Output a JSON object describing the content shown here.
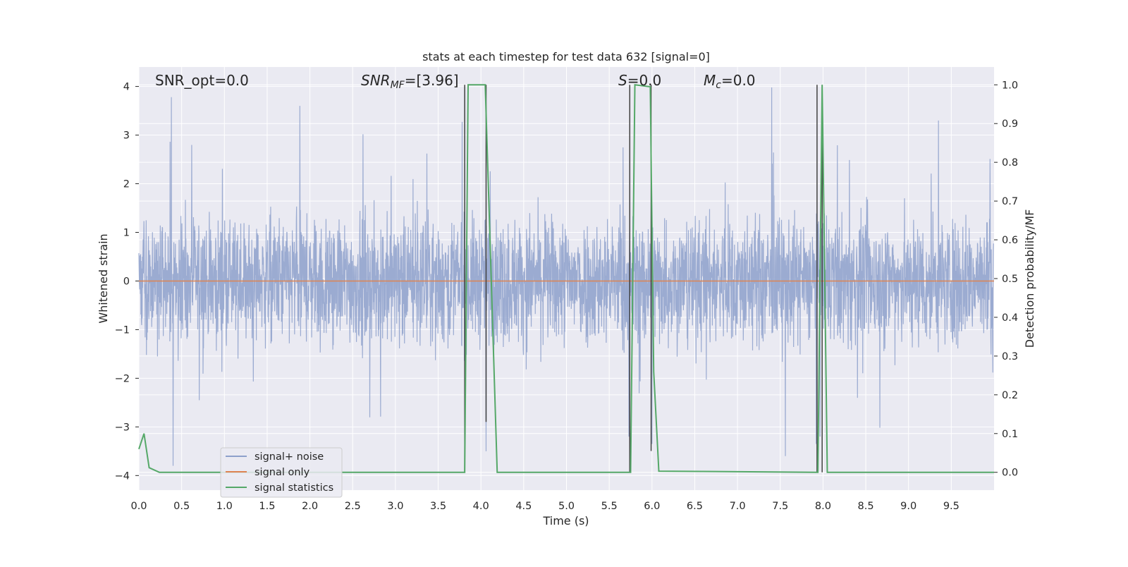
{
  "chart_data": {
    "type": "line",
    "title": "stats at each timestep for test data 632 [signal=0]",
    "xlabel": "Time (s)",
    "ylabel": "Whitened strain",
    "y2label": "Detection probability/MF",
    "xlim": [
      0,
      10
    ],
    "ylim": [
      -4.3,
      4.4
    ],
    "y2lim": [
      -0.046,
      1.046
    ],
    "grid": true,
    "xticks": [
      "0.0",
      "0.5",
      "1.0",
      "1.5",
      "2.0",
      "2.5",
      "3.0",
      "3.5",
      "4.0",
      "4.5",
      "5.0",
      "5.5",
      "6.0",
      "6.5",
      "7.0",
      "7.5",
      "8.0",
      "8.5",
      "9.0",
      "9.5"
    ],
    "xtick_values": [
      0,
      0.5,
      1,
      1.5,
      2,
      2.5,
      3,
      3.5,
      4,
      4.5,
      5,
      5.5,
      6,
      6.5,
      7,
      7.5,
      8,
      8.5,
      9,
      9.5
    ],
    "yticks": [
      "4",
      "3",
      "2",
      "1",
      "0",
      "−1",
      "−2",
      "−3",
      "−4"
    ],
    "ytick_values": [
      4,
      3,
      2,
      1,
      0,
      -1,
      -2,
      -3,
      -4
    ],
    "y2ticks": [
      "1.0",
      "0.9",
      "0.8",
      "0.7",
      "0.6",
      "0.5",
      "0.4",
      "0.3",
      "0.2",
      "0.1",
      "0.0"
    ],
    "y2tick_values": [
      1.0,
      0.9,
      0.8,
      0.7,
      0.6,
      0.5,
      0.4,
      0.3,
      0.2,
      0.1,
      0.0
    ],
    "annotations": {
      "snr_opt": "SNR_opt=0.0",
      "snr_mf_main": "SNR",
      "snr_mf_sub": "MF",
      "snr_mf_value": "=[3.96]",
      "s_main": "S",
      "s_value": "=0.0",
      "mc_main": "M",
      "mc_sub": "c",
      "mc_value": "=0.0"
    },
    "legend": {
      "placement": "lower left",
      "entries": [
        "signal+ noise",
        "signal only",
        "signal statistics"
      ]
    },
    "series": [
      {
        "name": "signal+ noise",
        "color": "#8da0cb",
        "description_values": "noise-like trace, mostly within [-1.5, 1.7], peaks near 3.8 at t=0.38 and -3.8 near t=0.4",
        "peaks": [
          [
            0.38,
            3.78
          ],
          [
            0.4,
            -3.8
          ],
          [
            3.78,
            3.27
          ],
          [
            4.06,
            -3.5
          ],
          [
            5.73,
            -3.2
          ],
          [
            6.0,
            -3.35
          ],
          [
            7.4,
            3.98
          ],
          [
            7.56,
            -3.6
          ],
          [
            7.92,
            -3.35
          ],
          [
            9.35,
            3.3
          ]
        ]
      },
      {
        "name": "signal only",
        "color": "#dd8452",
        "x": [
          0,
          10
        ],
        "y": [
          0,
          0
        ]
      },
      {
        "name": "signal statistics",
        "color": "#55a868",
        "axis": "right",
        "x": [
          0.0,
          0.06,
          0.12,
          0.24,
          3.81,
          3.85,
          4.05,
          4.19,
          5.75,
          5.8,
          5.98,
          6.02,
          6.08,
          7.94,
          7.99,
          8.05,
          10.0
        ],
        "y": [
          0.06,
          0.1,
          0.012,
          0.0,
          0.0,
          1.0,
          1.0,
          0.0,
          0.0,
          1.0,
          0.995,
          0.26,
          0.003,
          0.0,
          1.0,
          0.0,
          0.0
        ]
      }
    ],
    "vertical_markers": {
      "color": "#404040",
      "lines": [
        {
          "x": 3.81,
          "y1": 0.0,
          "y2": 1.0
        },
        {
          "x": 4.06,
          "y1": 0.13,
          "y2": 1.0
        },
        {
          "x": 5.74,
          "y1": 0.0,
          "y2": 1.0
        },
        {
          "x": 5.99,
          "y1": 0.055,
          "y2": 1.0
        },
        {
          "x": 7.93,
          "y1": 0.0,
          "y2": 1.0
        },
        {
          "x": 7.99,
          "y1": 0.0,
          "y2": 1.0
        }
      ]
    }
  }
}
